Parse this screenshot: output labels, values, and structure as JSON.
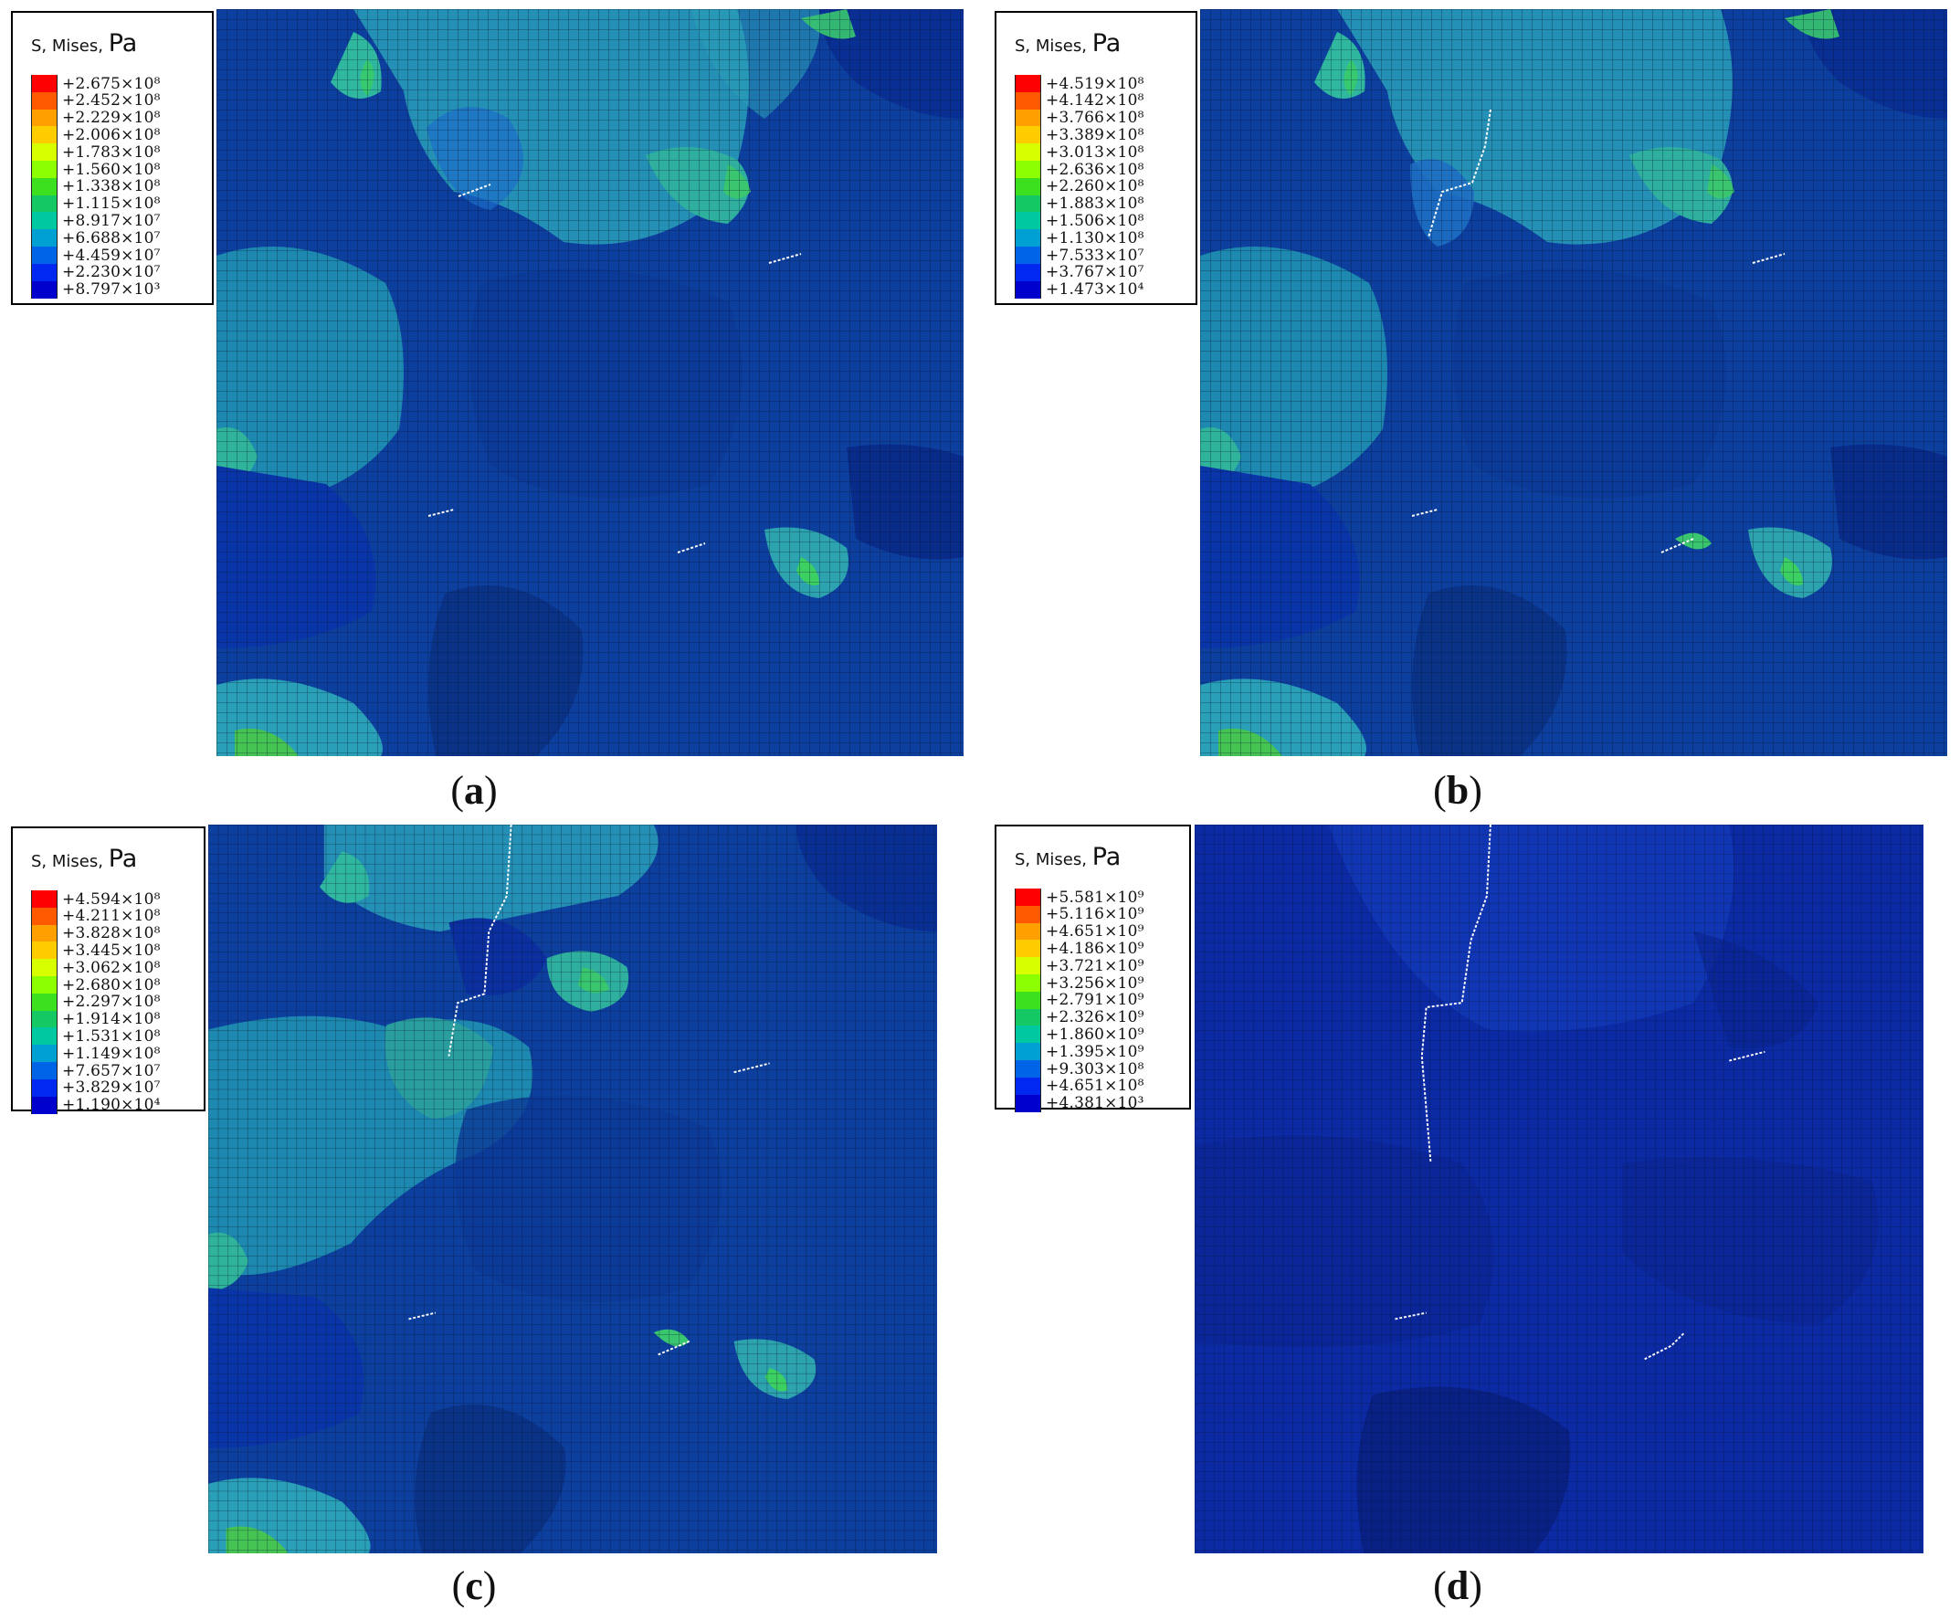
{
  "legend_title": "S, Mises",
  "legend_unit": "Pa",
  "contour_colors": [
    "#ff0000",
    "#ff5a00",
    "#ffa000",
    "#ffcc00",
    "#d8ff00",
    "#8cff00",
    "#3ce01e",
    "#14c864",
    "#00c8a0",
    "#00a0d2",
    "#0064e6",
    "#0028f0",
    "#0000cd"
  ],
  "panels": [
    {
      "caption_letter": "a",
      "legend_values": [
        "+2.675×10⁸",
        "+2.452×10⁸",
        "+2.229×10⁸",
        "+2.006×10⁸",
        "+1.783×10⁸",
        "+1.560×10⁸",
        "+1.338×10⁸",
        "+1.115×10⁸",
        "+8.917×10⁷",
        "+6.688×10⁷",
        "+4.459×10⁷",
        "+2.230×10⁷",
        "+8.797×10³"
      ]
    },
    {
      "caption_letter": "b",
      "legend_values": [
        "+4.519×10⁸",
        "+4.142×10⁸",
        "+3.766×10⁸",
        "+3.389×10⁸",
        "+3.013×10⁸",
        "+2.636×10⁸",
        "+2.260×10⁸",
        "+1.883×10⁸",
        "+1.506×10⁸",
        "+1.130×10⁸",
        "+7.533×10⁷",
        "+3.767×10⁷",
        "+1.473×10⁴"
      ]
    },
    {
      "caption_letter": "c",
      "legend_values": [
        "+4.594×10⁸",
        "+4.211×10⁸",
        "+3.828×10⁸",
        "+3.445×10⁸",
        "+3.062×10⁸",
        "+2.680×10⁸",
        "+2.297×10⁸",
        "+1.914×10⁸",
        "+1.531×10⁸",
        "+1.149×10⁸",
        "+7.657×10⁷",
        "+3.829×10⁷",
        "+1.190×10⁴"
      ]
    },
    {
      "caption_letter": "d",
      "legend_values": [
        "+5.581×10⁹",
        "+5.116×10⁹",
        "+4.651×10⁹",
        "+4.186×10⁹",
        "+3.721×10⁹",
        "+3.256×10⁹",
        "+2.791×10⁹",
        "+2.326×10⁹",
        "+1.860×10⁹",
        "+1.395×10⁹",
        "+9.303×10⁸",
        "+4.651×10⁸",
        "+4.381×10³"
      ]
    }
  ]
}
